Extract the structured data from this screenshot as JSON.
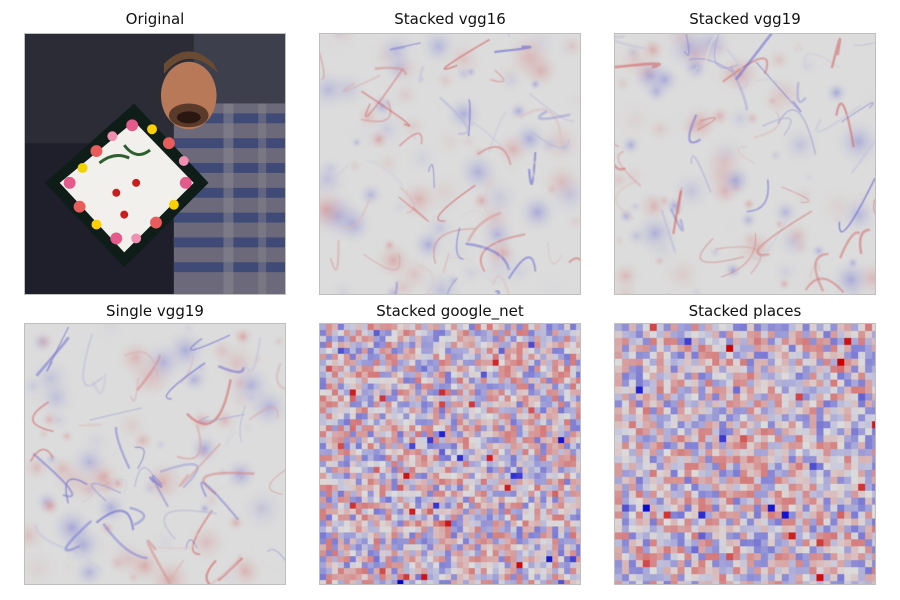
{
  "panels": [
    {
      "title": "Original",
      "kind": "photo"
    },
    {
      "title": "Stacked vgg16",
      "kind": "saliency-smooth"
    },
    {
      "title": "Stacked vgg19",
      "kind": "saliency-smooth"
    },
    {
      "title": "Single vgg19",
      "kind": "saliency-smooth"
    },
    {
      "title": "Stacked google_net",
      "kind": "saliency-grid"
    },
    {
      "title": "Stacked places",
      "kind": "saliency-grid"
    }
  ],
  "colors": {
    "positive": "#cc0000",
    "negative": "#0000cc",
    "neutral": "#dcdcdc"
  }
}
